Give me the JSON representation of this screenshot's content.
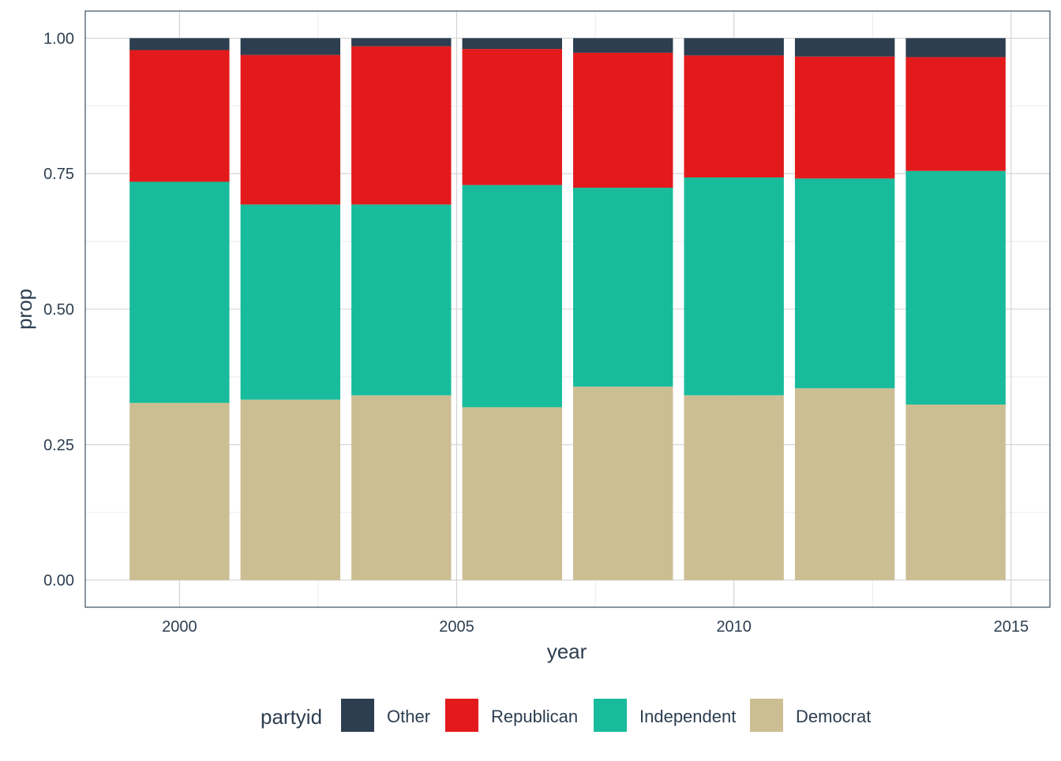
{
  "colors": {
    "Other": "#2c3e50",
    "Republican": "#e31a1c",
    "Independent": "#18bc9c",
    "Democrat": "#ccbe93",
    "text": "#2c3e50",
    "panel_border": "#2c3e50"
  },
  "chart_data": {
    "type": "bar",
    "stacked": true,
    "xlabel": "year",
    "ylabel": "prop",
    "x": [
      2000,
      2002,
      2004,
      2006,
      2008,
      2010,
      2012,
      2014
    ],
    "xlim": [
      1998.3,
      2015.7
    ],
    "ylim": [
      -0.05,
      1.05
    ],
    "x_ticks": [
      2000,
      2005,
      2010,
      2015
    ],
    "y_ticks": [
      0.0,
      0.25,
      0.5,
      0.75,
      1.0
    ],
    "x_tick_labels": [
      "2000",
      "2005",
      "2010",
      "2015"
    ],
    "y_tick_labels": [
      "0.00",
      "0.25",
      "0.50",
      "0.75",
      "1.00"
    ],
    "grid": true,
    "legend_title": "partyid",
    "legend_position": "bottom",
    "series": [
      {
        "name": "Democrat",
        "values": [
          0.327,
          0.333,
          0.341,
          0.319,
          0.357,
          0.341,
          0.354,
          0.324
        ]
      },
      {
        "name": "Independent",
        "values": [
          0.408,
          0.36,
          0.352,
          0.41,
          0.367,
          0.402,
          0.387,
          0.431
        ]
      },
      {
        "name": "Republican",
        "values": [
          0.243,
          0.276,
          0.292,
          0.251,
          0.249,
          0.225,
          0.225,
          0.21
        ]
      },
      {
        "name": "Other",
        "values": [
          0.022,
          0.031,
          0.015,
          0.02,
          0.027,
          0.032,
          0.034,
          0.035
        ]
      }
    ],
    "legend_order": [
      "Other",
      "Republican",
      "Independent",
      "Democrat"
    ]
  }
}
